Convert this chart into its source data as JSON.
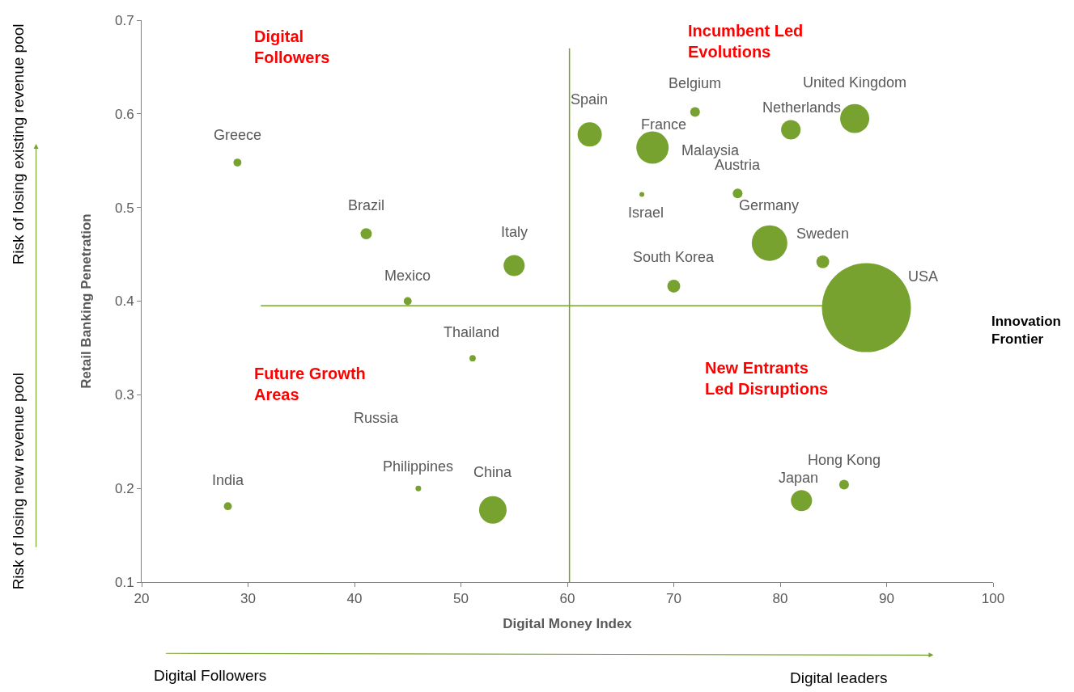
{
  "chart_data": {
    "type": "bubble",
    "xlabel": "Digital Money Index",
    "ylabel": "Retail Banking Penetration",
    "x": [
      29.0,
      41.1,
      55.0,
      45.0,
      51.1,
      28.1,
      46.0,
      53.0,
      62.1,
      68.0,
      72.0,
      67.0,
      76.0,
      81.0,
      87.0,
      79.0,
      84.0,
      70.0,
      88.1,
      82.0,
      86.0
    ],
    "series": [
      {
        "color": "#77a22f",
        "values": [
          0.548,
          0.472,
          0.438,
          0.4,
          0.339,
          0.181,
          0.2,
          0.177,
          0.578,
          0.564,
          0.602,
          0.514,
          0.515,
          0.583,
          0.595,
          0.462,
          0.442,
          0.416,
          0.393,
          0.187,
          0.204
        ],
        "sizes": [
          0.008,
          0.016,
          0.056,
          0.008,
          0.005,
          0.008,
          0.004,
          0.096,
          0.074,
          0.132,
          0.012,
          0.003,
          0.012,
          0.048,
          0.107,
          0.16,
          0.021,
          0.021,
          1,
          0.056,
          0.012
        ]
      }
    ],
    "xlim": [
      20,
      100
    ],
    "xticks": [
      20,
      30,
      40,
      50,
      60,
      70,
      80,
      90,
      100
    ],
    "ylim": [
      0.1,
      0.7
    ],
    "yticks": [
      {
        "value": 0.1,
        "label": "0.1"
      },
      {
        "value": 0.2,
        "label": "0.2"
      },
      {
        "value": 0.3,
        "label": "0.3"
      },
      {
        "value": 0.4,
        "label": "0.4"
      },
      {
        "value": 0.5,
        "label": "0.5"
      },
      {
        "value": 0.6,
        "label": "0.6"
      },
      {
        "value": 0.7,
        "label": "0.7"
      }
    ],
    "grid": false,
    "legend": false,
    "ref_lines": [
      {
        "axis": "x",
        "value": 60.2,
        "color": "#77a22f"
      },
      {
        "axis": "y",
        "value": 0.395,
        "color": "#77a22f"
      }
    ],
    "annotations": [
      {
        "text": "Greece",
        "x": 29.0,
        "y": 0.548
      },
      {
        "text": "Brazil",
        "x": 41.1,
        "y": 0.472
      },
      {
        "text": "Italy",
        "x": 55.0,
        "y": 0.438
      },
      {
        "text": "Mexico",
        "x": 45.0,
        "y": 0.4
      },
      {
        "text": "Thailand",
        "x": 51.1,
        "y": 0.339
      },
      {
        "text": "India",
        "x": 28.1,
        "y": 0.181
      },
      {
        "text": "Philippines",
        "x": 46.0,
        "y": 0.2
      },
      {
        "text": "China",
        "x": 53.0,
        "y": 0.177
      },
      {
        "text": "Spain",
        "x": 62.1,
        "y": 0.578
      },
      {
        "text": "France",
        "x": 68.0,
        "y": 0.564
      },
      {
        "text": "Belgium",
        "x": 72.0,
        "y": 0.602
      },
      {
        "text": "Israel",
        "x": 67.0,
        "y": 0.514
      },
      {
        "text": "Austria",
        "x": 76.0,
        "y": 0.515
      },
      {
        "text": "Netherlands",
        "x": 81.0,
        "y": 0.583
      },
      {
        "text": "United Kingdom",
        "x": 87.0,
        "y": 0.595
      },
      {
        "text": "Germany",
        "x": 79.0,
        "y": 0.462
      },
      {
        "text": "Sweden",
        "x": 84.0,
        "y": 0.442
      },
      {
        "text": "South Korea",
        "x": 70.0,
        "y": 0.416
      },
      {
        "text": "Japan",
        "x": 82.0,
        "y": 0.187
      },
      {
        "text": "Hong Kong",
        "x": 86.0,
        "y": 0.204
      },
      "Russia",
      "USA",
      "Malaysia",
      "Digital\nFollowers",
      "Incumbent Led\nEvolutions",
      "Future Growth\nAreas",
      "New Entrants\nLed Disruptions",
      "Innovation\nFrontier",
      "Risk of losing existing revenue pool",
      "Risk of losing new revenue pool",
      "Digital Followers",
      "Digital leaders"
    ]
  }
}
